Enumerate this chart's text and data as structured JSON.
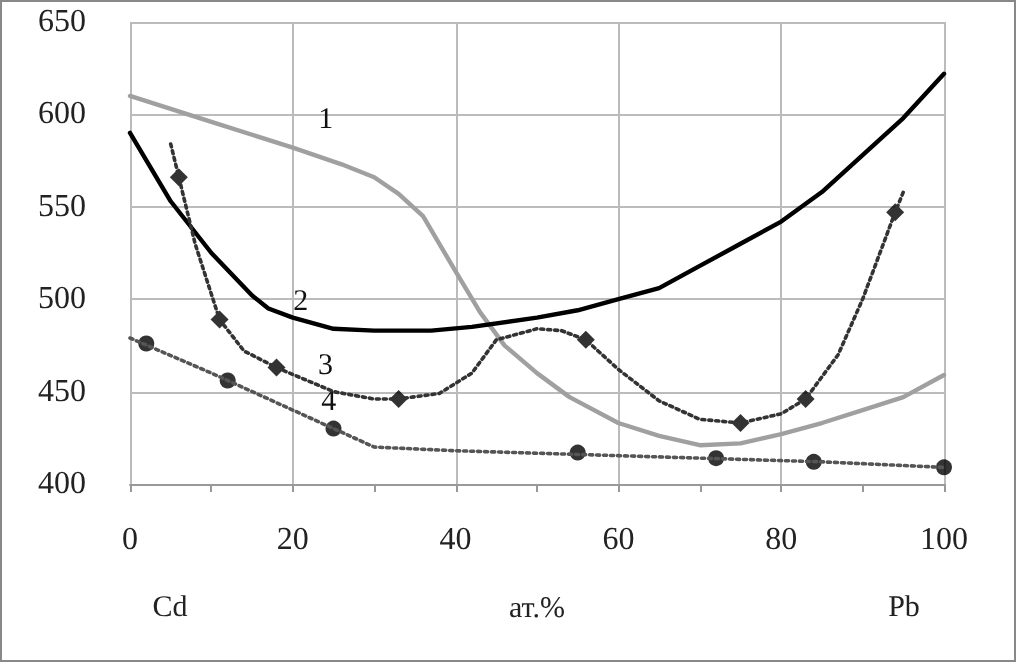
{
  "chart_data": {
    "type": "line",
    "xlabel": "ат.%",
    "xlim": [
      0,
      100
    ],
    "xticks": [
      0,
      {
        "value": 10,
        "label": null
      },
      20,
      {
        "value": 30,
        "label": null
      },
      40,
      {
        "value": 50,
        "label": null
      },
      60,
      {
        "value": 70,
        "label": null
      },
      80,
      {
        "value": 90,
        "label": null
      },
      100
    ],
    "ylim": [
      400,
      650
    ],
    "yticks": [
      400,
      450,
      500,
      550,
      600,
      650
    ],
    "grid": true,
    "legend": false,
    "series": [
      {
        "name": "1",
        "color": "#a0a0a0",
        "line_style": "solid",
        "marker": "none",
        "x": [
          0,
          10,
          20,
          26,
          30,
          33,
          36,
          40,
          43,
          46,
          50,
          54,
          60,
          65,
          70,
          75,
          80,
          85,
          90,
          95,
          100
        ],
        "values": [
          610,
          596,
          582,
          573,
          566,
          557,
          545,
          515,
          493,
          475,
          460,
          447,
          433,
          426,
          421,
          422,
          427,
          433,
          440,
          447,
          459
        ]
      },
      {
        "name": "2",
        "color": "#000000",
        "line_style": "solid",
        "marker": "none",
        "x": [
          0,
          5,
          10,
          15,
          17,
          20,
          25,
          30,
          37,
          42,
          50,
          55,
          60,
          65,
          70,
          75,
          80,
          85,
          90,
          95,
          100
        ],
        "values": [
          590,
          553,
          525,
          502,
          495,
          490,
          484,
          483,
          483,
          485,
          490,
          494,
          500,
          506,
          518,
          530,
          542,
          558,
          578,
          598,
          622
        ]
      },
      {
        "name": "3",
        "color": "#333333",
        "line_style": "dotted",
        "marker": "none",
        "x": [
          5,
          6,
          8,
          11,
          14,
          18,
          25,
          30,
          33,
          38,
          42,
          45,
          50,
          53,
          56,
          60,
          65,
          70,
          75,
          80,
          83,
          87,
          90,
          94,
          95
        ],
        "values": [
          584,
          566,
          530,
          489,
          472,
          463,
          450,
          446,
          446,
          449,
          460,
          478,
          484,
          483,
          478,
          462,
          445,
          435,
          433,
          438,
          446,
          470,
          500,
          547,
          558
        ]
      },
      {
        "type": "scatter",
        "color": "#000000",
        "marker": "diamond",
        "x": [
          6,
          11,
          18,
          33,
          56,
          75,
          83,
          94
        ],
        "values": [
          566,
          489,
          463,
          446,
          478,
          433,
          446,
          547
        ]
      },
      {
        "name": "4",
        "color": "#555555",
        "line_style": "dotted",
        "marker": "none",
        "x": [
          0,
          10,
          20,
          30,
          40,
          55,
          70,
          85,
          100
        ],
        "values": [
          479,
          460,
          440,
          420,
          418,
          416,
          414,
          412,
          409
        ]
      },
      {
        "type": "scatter",
        "color": "#000000",
        "marker": "circle",
        "x": [
          2,
          12,
          25,
          55,
          72,
          84,
          100
        ],
        "values": [
          476,
          456,
          430,
          417,
          414,
          412,
          409
        ]
      }
    ],
    "annotations": [
      "Cd",
      "Pb"
    ]
  }
}
